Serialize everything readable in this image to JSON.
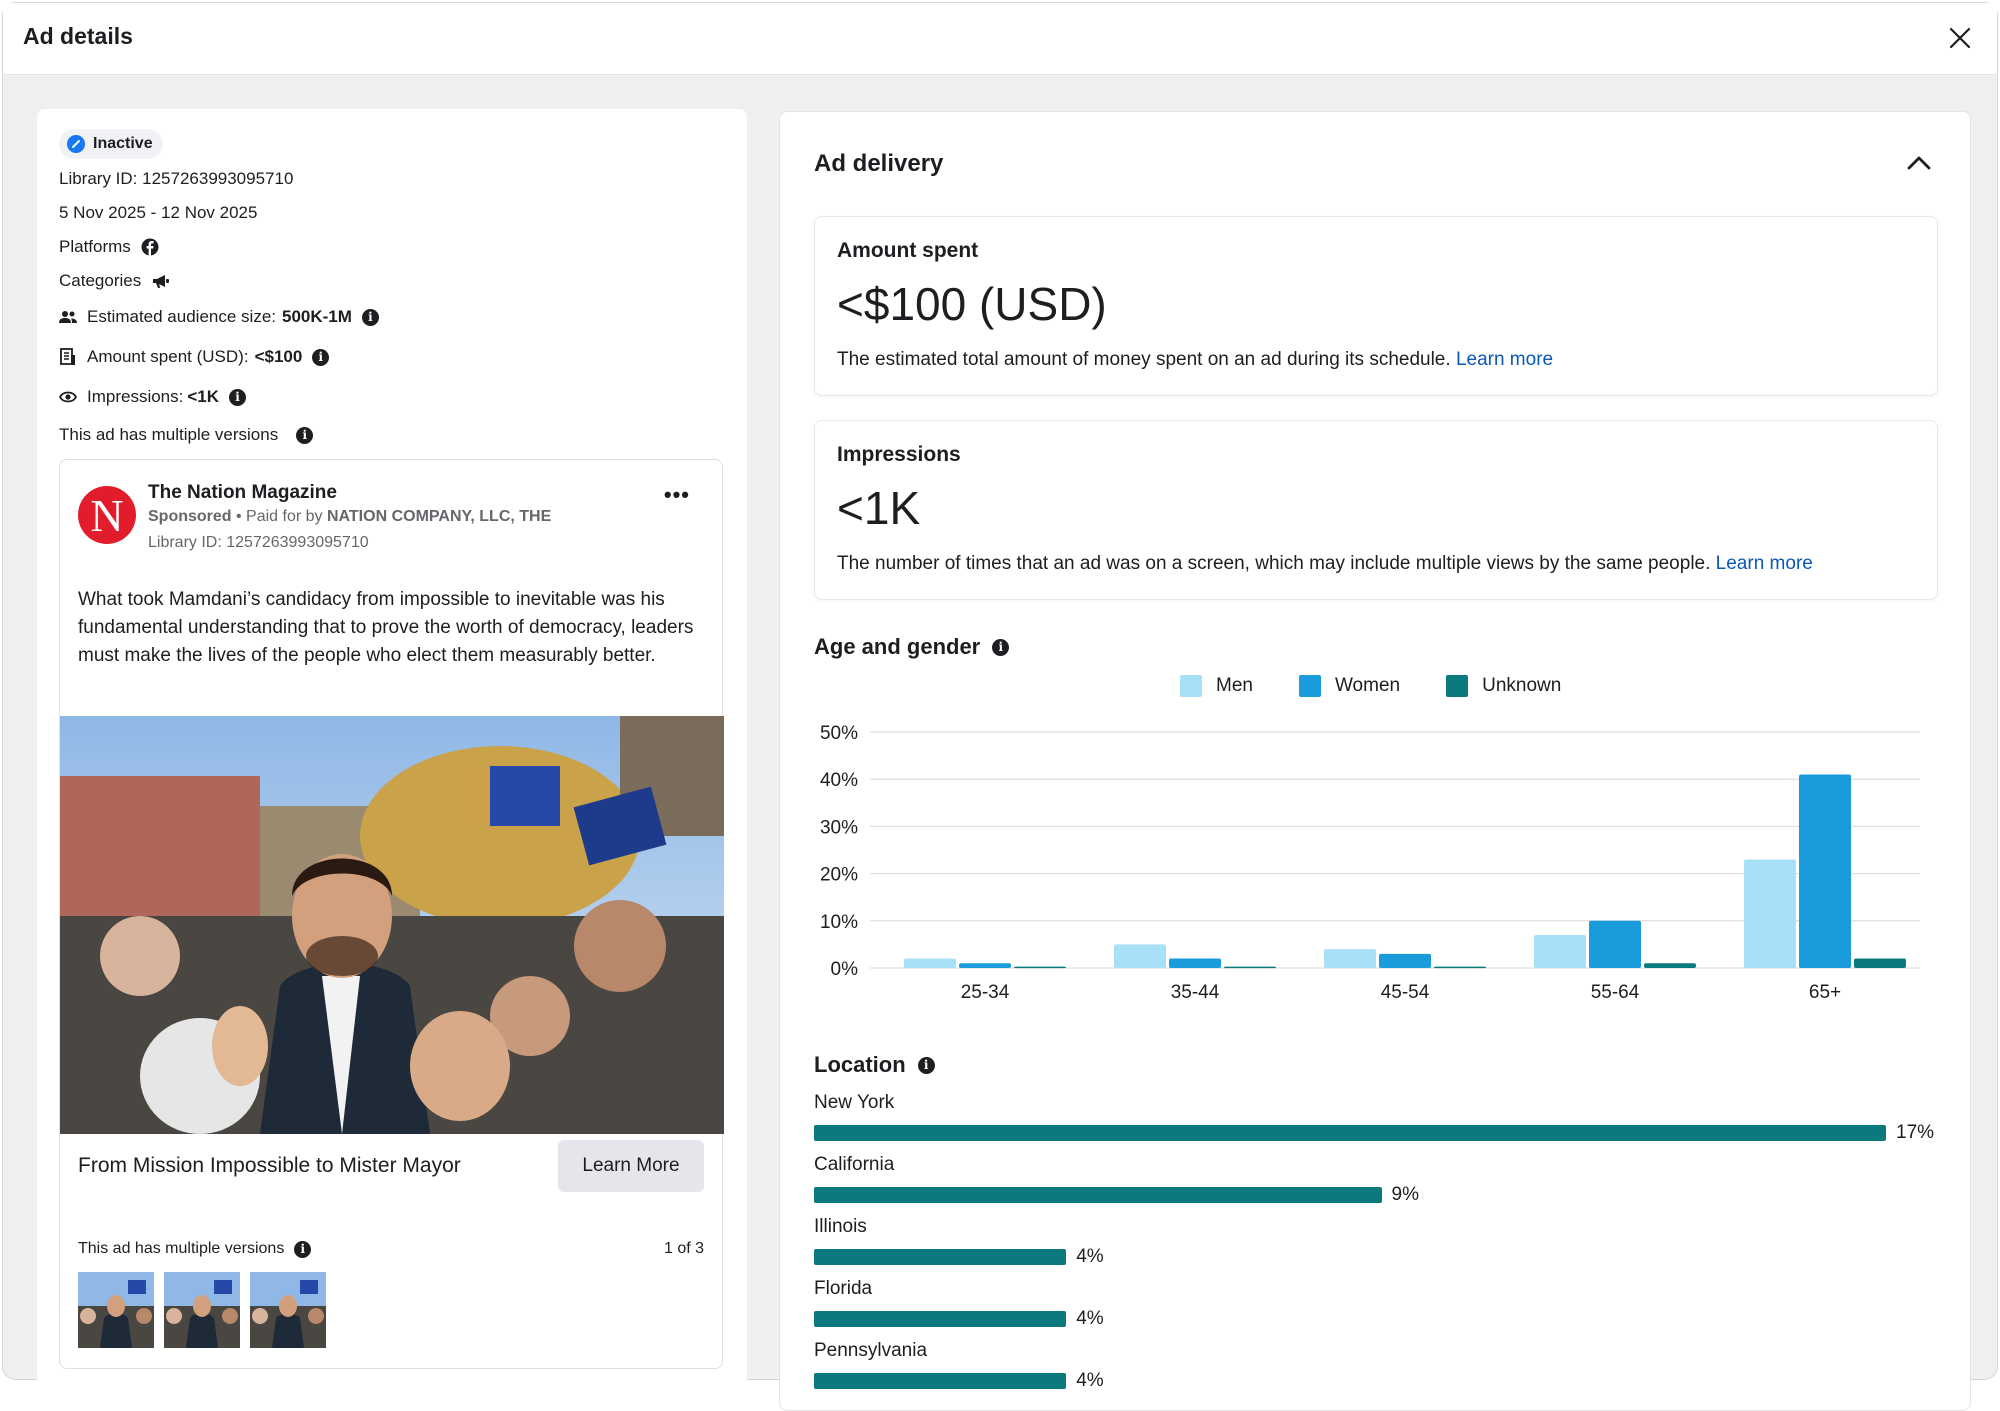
{
  "modal": {
    "title": "Ad details"
  },
  "summary": {
    "status": "Inactive",
    "library_id": "Library ID: 1257263993095710",
    "date_range": "5 Nov 2025 - 12 Nov 2025",
    "platforms_label": "Platforms",
    "categories_label": "Categories",
    "audience_label": "Estimated audience size:",
    "audience_value": "500K-1M",
    "spent_label": "Amount spent (USD):",
    "spent_value": "<$100",
    "impressions_label": "Impressions:",
    "impressions_value": "<1K",
    "multiple_versions": "This ad has multiple versions"
  },
  "ad": {
    "avatar_letter": "N",
    "page_name": "The Nation Magazine",
    "sponsored": "Sponsored",
    "paid_for_prefix": " • Paid for by ",
    "payer": "NATION COMPANY, LLC, THE",
    "library_id": "Library ID: 1257263993095710",
    "more": "•••",
    "body": "What took Mamdani’s candidacy from impossible to inevitable was his fundamental understanding that to prove the worth of democracy, leaders must make the lives of the people who elect them measurably better.",
    "headline": "From Mission Impossible to Mister Mayor",
    "cta": "Learn More",
    "versions_label": "This ad has multiple versions",
    "versions_count": "1 of 3"
  },
  "delivery": {
    "title": "Ad delivery",
    "amount_label": "Amount spent",
    "amount_value": "<$100 (USD)",
    "amount_desc": "The estimated total amount of money spent on an ad during its schedule. ",
    "impressions_label": "Impressions",
    "impressions_value": "<1K",
    "impressions_desc": "The number of times that an ad was on a screen, which may include multiple views by the same people. ",
    "learn_more": "Learn more",
    "age_gender_title": "Age and gender",
    "location_title": "Location"
  },
  "colors": {
    "men": "#a7e0f7",
    "women": "#1a9bdc",
    "unknown": "#0a7a7f",
    "link": "#0a58b8"
  },
  "chart_data": {
    "type": "bar",
    "categories": [
      "25-34",
      "35-44",
      "45-54",
      "55-64",
      "65+"
    ],
    "series": [
      {
        "name": "Men",
        "values": [
          2,
          5,
          4,
          7,
          23
        ]
      },
      {
        "name": "Women",
        "values": [
          1,
          2,
          3,
          10,
          41
        ]
      },
      {
        "name": "Unknown",
        "values": [
          0.3,
          0.3,
          0.3,
          1,
          2
        ]
      }
    ],
    "yticks": [
      "0%",
      "10%",
      "20%",
      "30%",
      "40%",
      "50%"
    ],
    "ylim": [
      0,
      50
    ],
    "legend": "top",
    "grid": true
  },
  "locations": [
    {
      "name": "New York",
      "pct": 17,
      "label": "17%"
    },
    {
      "name": "California",
      "pct": 9,
      "label": "9%"
    },
    {
      "name": "Illinois",
      "pct": 4,
      "label": "4%"
    },
    {
      "name": "Florida",
      "pct": 4,
      "label": "4%"
    },
    {
      "name": "Pennsylvania",
      "pct": 4,
      "label": "4%"
    }
  ]
}
